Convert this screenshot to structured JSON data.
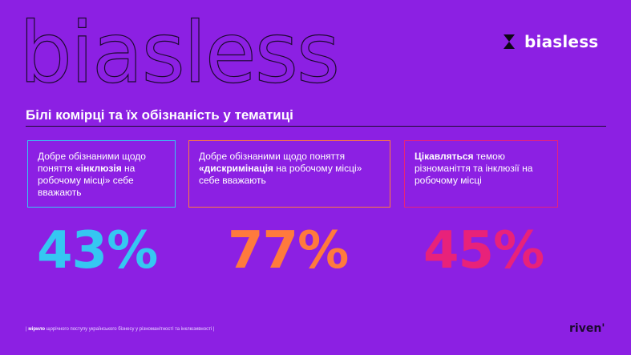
{
  "background_color": "#8c20e3",
  "outline_title": "biasless",
  "brand": {
    "name": "biasless",
    "icon": "hourglass-icon"
  },
  "heading": "Білі комірці та їх обізнаність у тематиці",
  "cards": [
    {
      "color": "#35c7f2",
      "text_before": "Добре обізнаними щодо поняття ",
      "text_bold": "«інклюзія",
      "text_after": " на робочому місці» себе вважають",
      "value": "43%"
    },
    {
      "color": "#ff7a3d",
      "text_before": "Добре обізнаними щодо поняття ",
      "text_bold": "«дискримінація",
      "text_after": " на робочому місці» себе вважають",
      "value": "77%"
    },
    {
      "color": "#e8227a",
      "text_before": "",
      "text_bold": "Цікавляться",
      "text_after": " темою різноманіття та інклюзії на робочому місці",
      "value": "45%"
    }
  ],
  "footnote": {
    "prefix": "| ",
    "bold": "мірило",
    "rest": " щорічного поступу українського бізнесу у різноманітності та інклюзивності |"
  },
  "partner_logo": "riven'"
}
